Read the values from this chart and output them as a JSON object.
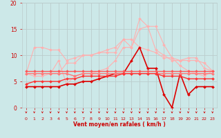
{
  "x": [
    0,
    1,
    2,
    3,
    4,
    5,
    6,
    7,
    8,
    9,
    10,
    11,
    12,
    13,
    14,
    15,
    16,
    17,
    18,
    19,
    20,
    21,
    22,
    23
  ],
  "series": [
    {
      "color": "#FFB0B0",
      "lw": 0.8,
      "values": [
        6.5,
        11.5,
        11.5,
        11.0,
        11.0,
        9.0,
        9.5,
        10.0,
        10.0,
        10.5,
        10.5,
        10.5,
        13.0,
        11.5,
        15.0,
        15.5,
        11.0,
        10.0,
        9.0,
        9.0,
        9.0,
        9.0,
        8.5,
        7.0
      ]
    },
    {
      "color": "#FFB0B0",
      "lw": 0.8,
      "values": [
        6.5,
        6.5,
        6.5,
        6.5,
        6.5,
        8.5,
        8.5,
        10.0,
        10.0,
        10.5,
        11.0,
        11.5,
        13.0,
        13.0,
        11.5,
        11.0,
        10.5,
        9.5,
        9.5,
        9.0,
        9.5,
        9.5,
        7.5,
        7.0
      ]
    },
    {
      "color": "#FFB0B0",
      "lw": 0.8,
      "values": [
        6.5,
        6.0,
        6.0,
        6.5,
        9.0,
        4.5,
        6.0,
        6.5,
        6.5,
        7.0,
        7.5,
        9.0,
        11.5,
        11.5,
        17.0,
        15.5,
        15.5,
        12.0,
        9.5,
        8.0,
        7.0,
        6.5,
        6.0,
        7.0
      ]
    },
    {
      "color": "#DD0000",
      "lw": 1.2,
      "values": [
        4.0,
        4.0,
        4.0,
        4.0,
        4.0,
        4.5,
        4.5,
        5.0,
        5.0,
        5.5,
        6.0,
        6.5,
        6.5,
        9.0,
        11.5,
        7.5,
        7.5,
        2.5,
        0.0,
        6.5,
        2.5,
        4.0,
        4.0,
        4.0
      ]
    },
    {
      "color": "#FF5555",
      "lw": 1.0,
      "values": [
        7.0,
        7.0,
        7.0,
        7.0,
        7.0,
        7.0,
        7.0,
        7.0,
        7.0,
        7.0,
        7.0,
        7.0,
        7.0,
        7.0,
        7.0,
        7.0,
        7.0,
        7.0,
        7.0,
        7.0,
        7.0,
        7.0,
        7.0,
        7.0
      ]
    },
    {
      "color": "#FF7777",
      "lw": 1.0,
      "values": [
        6.5,
        6.5,
        6.5,
        6.5,
        6.5,
        6.5,
        6.0,
        6.5,
        6.5,
        6.5,
        6.5,
        6.5,
        6.5,
        6.5,
        6.5,
        6.5,
        6.5,
        6.5,
        6.5,
        6.5,
        6.5,
        6.5,
        6.5,
        6.5
      ]
    },
    {
      "color": "#FF3333",
      "lw": 1.0,
      "values": [
        4.5,
        5.0,
        5.0,
        5.0,
        5.0,
        5.5,
        5.5,
        6.0,
        6.0,
        6.0,
        6.0,
        6.0,
        6.5,
        6.5,
        6.5,
        6.5,
        6.5,
        6.0,
        6.0,
        6.0,
        5.5,
        5.5,
        5.5,
        5.5
      ]
    }
  ],
  "marker_colors": [
    "#FFB0B0",
    "#FFB0B0",
    "#FFB0B0",
    "#DD0000",
    "#FF5555",
    "#FF7777",
    "#FF3333"
  ],
  "xlabel": "Vent moyen/en rafales ( km/h )",
  "ylim": [
    0,
    20
  ],
  "yticks": [
    0,
    5,
    10,
    15,
    20
  ],
  "xticks": [
    0,
    1,
    2,
    3,
    4,
    5,
    6,
    7,
    8,
    9,
    10,
    11,
    12,
    13,
    14,
    15,
    16,
    17,
    18,
    19,
    20,
    21,
    22,
    23
  ],
  "bg_color": "#cce8e8",
  "grid_color": "#bbcccc",
  "tick_color": "#CC0000",
  "xlabel_color": "#CC0000"
}
